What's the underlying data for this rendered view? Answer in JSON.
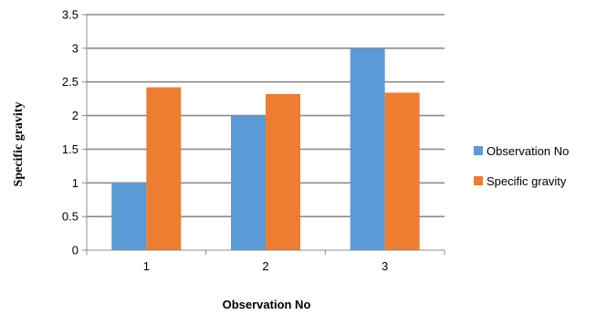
{
  "chart_data": {
    "type": "bar",
    "title": "",
    "xlabel": "Observation No",
    "ylabel": "Specific gravity",
    "categories": [
      "1",
      "2",
      "3"
    ],
    "ylim": [
      0,
      3.5
    ],
    "yticks": [
      "0",
      "0.5",
      "1",
      "1.5",
      "2",
      "2.5",
      "3",
      "3.5"
    ],
    "grid": true,
    "legend_position": "right",
    "series": [
      {
        "name": "Observation No",
        "color": "#5b9bd5",
        "values": [
          1,
          2,
          3
        ]
      },
      {
        "name": "Specific gravity",
        "color": "#ed7d31",
        "values": [
          2.42,
          2.32,
          2.34
        ]
      }
    ]
  }
}
